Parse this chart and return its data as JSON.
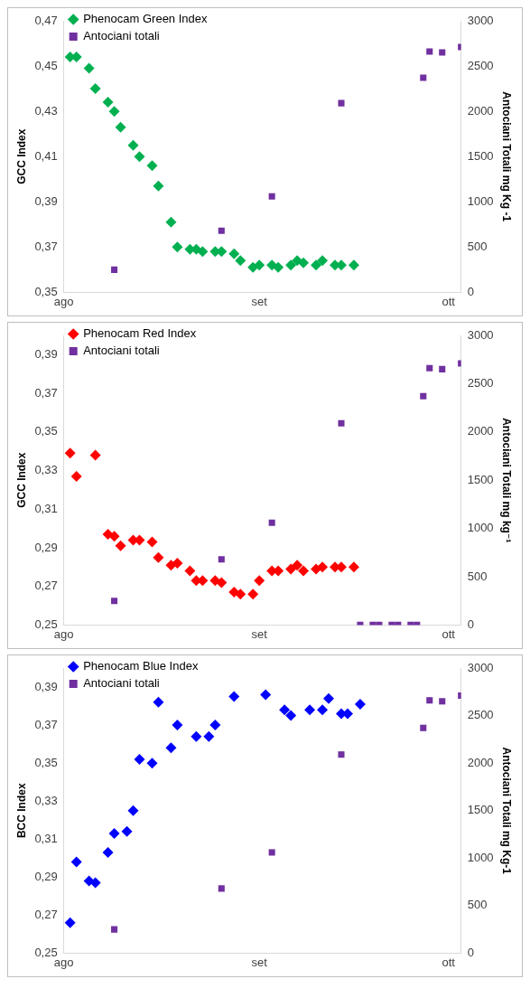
{
  "chart_data": [
    {
      "type": "scatter",
      "ylabel": "GCC Index",
      "y2label": "Antociani Totali mg Kg -1",
      "legend": "top left",
      "grid": false,
      "categories": [
        "ago",
        null,
        null,
        null,
        null,
        null,
        null,
        null,
        null,
        null,
        null,
        null,
        null,
        null,
        null,
        null,
        null,
        null,
        null,
        null,
        null,
        null,
        null,
        null,
        null,
        null,
        null,
        null,
        null,
        null,
        null,
        "set",
        null,
        null,
        null,
        null,
        null,
        null,
        null,
        null,
        null,
        null,
        null,
        null,
        null,
        null,
        null,
        null,
        null,
        null,
        null,
        null,
        null,
        null,
        null,
        null,
        null,
        null,
        null,
        null,
        null,
        "ott",
        null,
        null
      ],
      "ylim": [
        0.35,
        0.47
      ],
      "yticks": [
        {
          "value": 0.35,
          "label": "0,35"
        },
        {
          "value": 0.37,
          "label": "0,37"
        },
        {
          "value": 0.39,
          "label": "0,39"
        },
        {
          "value": 0.41,
          "label": "0,41"
        },
        {
          "value": 0.43,
          "label": "0,43"
        },
        {
          "value": 0.45,
          "label": "0,45"
        },
        {
          "value": 0.47,
          "label": "0,47"
        }
      ],
      "y2lim": [
        0,
        3000
      ],
      "y2ticks": [
        0,
        500,
        1000,
        1500,
        2000,
        2500,
        3000
      ],
      "series": [
        {
          "name": "Phenocam Green Index",
          "color": "#00b050",
          "marker": "diamond",
          "values": [
            null,
            0.454,
            0.454,
            null,
            0.449,
            0.44,
            null,
            0.434,
            0.43,
            0.423,
            null,
            0.415,
            0.41,
            null,
            0.406,
            0.397,
            null,
            0.381,
            0.37,
            null,
            0.369,
            0.369,
            0.368,
            null,
            0.368,
            0.368,
            null,
            0.367,
            0.364,
            null,
            0.361,
            0.362,
            null,
            0.362,
            0.361,
            null,
            0.362,
            0.364,
            0.363,
            null,
            0.362,
            0.364,
            null,
            0.362,
            0.362,
            null,
            0.362,
            null,
            null,
            null,
            null,
            null,
            null,
            null,
            null,
            null,
            null,
            null,
            null,
            null,
            null,
            null,
            null,
            null
          ]
        },
        {
          "name": "Antociani totali",
          "color": "#7030a0",
          "marker": "square",
          "axis": "y2",
          "values": [
            null,
            null,
            null,
            null,
            null,
            null,
            null,
            null,
            250,
            null,
            null,
            null,
            null,
            null,
            null,
            null,
            null,
            null,
            null,
            null,
            null,
            null,
            null,
            null,
            null,
            680,
            null,
            null,
            null,
            null,
            null,
            null,
            null,
            1060,
            null,
            null,
            null,
            null,
            null,
            null,
            null,
            null,
            null,
            null,
            2090,
            null,
            null,
            null,
            null,
            null,
            null,
            null,
            null,
            null,
            null,
            null,
            null,
            2370,
            2660,
            null,
            2650,
            null,
            null,
            2710
          ]
        }
      ]
    },
    {
      "type": "scatter",
      "ylabel": "GCC Index",
      "y2label": "Antociani Totali mg kg⁻¹",
      "legend": "top left",
      "grid": false,
      "categories": [
        "ago",
        null,
        null,
        null,
        null,
        null,
        null,
        null,
        null,
        null,
        null,
        null,
        null,
        null,
        null,
        null,
        null,
        null,
        null,
        null,
        null,
        null,
        null,
        null,
        null,
        null,
        null,
        null,
        null,
        null,
        null,
        "set",
        null,
        null,
        null,
        null,
        null,
        null,
        null,
        null,
        null,
        null,
        null,
        null,
        null,
        null,
        null,
        null,
        null,
        null,
        null,
        null,
        null,
        null,
        null,
        null,
        null,
        null,
        null,
        null,
        null,
        "ott",
        null,
        null
      ],
      "ylim": [
        0.25,
        0.4
      ],
      "yticks": [
        {
          "value": 0.25,
          "label": "0,25"
        },
        {
          "value": 0.27,
          "label": "0,27"
        },
        {
          "value": 0.29,
          "label": "0,29"
        },
        {
          "value": 0.31,
          "label": "0,31"
        },
        {
          "value": 0.33,
          "label": "0,33"
        },
        {
          "value": 0.35,
          "label": "0,35"
        },
        {
          "value": 0.37,
          "label": "0,37"
        },
        {
          "value": 0.39,
          "label": "0,39"
        }
      ],
      "y2lim": [
        0,
        3000
      ],
      "y2ticks": [
        0,
        500,
        1000,
        1500,
        2000,
        2500,
        3000
      ],
      "series": [
        {
          "name": "Phenocam Red Index",
          "color": "#ff0000",
          "marker": "diamond",
          "values": [
            null,
            0.339,
            0.327,
            null,
            null,
            0.338,
            null,
            0.297,
            0.296,
            0.291,
            null,
            0.294,
            0.294,
            null,
            0.293,
            0.285,
            null,
            0.281,
            0.282,
            null,
            0.278,
            0.273,
            0.273,
            null,
            0.273,
            0.272,
            null,
            0.267,
            0.266,
            null,
            0.266,
            0.273,
            null,
            0.278,
            0.278,
            null,
            0.279,
            0.281,
            0.278,
            null,
            0.279,
            0.28,
            null,
            0.28,
            0.28,
            null,
            0.28,
            null,
            null,
            null,
            null,
            null,
            null,
            null,
            null,
            null,
            null,
            null,
            null,
            null,
            null,
            null,
            null,
            null
          ]
        },
        {
          "name": "Antociani totali",
          "color": "#7030a0",
          "marker": "square",
          "axis": "y2",
          "values": [
            null,
            null,
            null,
            null,
            null,
            null,
            null,
            null,
            250,
            null,
            null,
            null,
            null,
            null,
            null,
            null,
            null,
            null,
            null,
            null,
            null,
            null,
            null,
            null,
            null,
            680,
            null,
            null,
            null,
            null,
            null,
            null,
            null,
            1060,
            null,
            null,
            null,
            null,
            null,
            null,
            null,
            null,
            null,
            null,
            2090,
            null,
            null,
            0,
            null,
            0,
            0,
            null,
            0,
            0,
            null,
            0,
            0,
            2370,
            2660,
            null,
            2650,
            null,
            null,
            2710
          ]
        }
      ]
    },
    {
      "type": "scatter",
      "ylabel": "BCC Index",
      "y2label": "Antociani Totali mg Kg-1",
      "legend": "top left",
      "grid": false,
      "categories": [
        "ago",
        null,
        null,
        null,
        null,
        null,
        null,
        null,
        null,
        null,
        null,
        null,
        null,
        null,
        null,
        null,
        null,
        null,
        null,
        null,
        null,
        null,
        null,
        null,
        null,
        null,
        null,
        null,
        null,
        null,
        null,
        "set",
        null,
        null,
        null,
        null,
        null,
        null,
        null,
        null,
        null,
        null,
        null,
        null,
        null,
        null,
        null,
        null,
        null,
        null,
        null,
        null,
        null,
        null,
        null,
        null,
        null,
        null,
        null,
        null,
        null,
        "ott",
        null,
        null
      ],
      "ylim": [
        0.25,
        0.4
      ],
      "yticks": [
        {
          "value": 0.25,
          "label": "0,25"
        },
        {
          "value": 0.27,
          "label": "0,27"
        },
        {
          "value": 0.29,
          "label": "0,29"
        },
        {
          "value": 0.31,
          "label": "0,31"
        },
        {
          "value": 0.33,
          "label": "0,33"
        },
        {
          "value": 0.35,
          "label": "0,35"
        },
        {
          "value": 0.37,
          "label": "0,37"
        },
        {
          "value": 0.39,
          "label": "0,39"
        }
      ],
      "y2lim": [
        0,
        3000
      ],
      "y2ticks": [
        0,
        500,
        1000,
        1500,
        2000,
        2500,
        3000
      ],
      "series": [
        {
          "name": "Phenocam Blue Index",
          "color": "#0000ff",
          "marker": "diamond",
          "values": [
            null,
            0.266,
            0.298,
            null,
            0.288,
            0.287,
            null,
            0.303,
            0.313,
            null,
            0.314,
            0.325,
            0.352,
            null,
            0.35,
            0.382,
            null,
            0.358,
            0.37,
            null,
            null,
            0.364,
            null,
            0.364,
            0.37,
            null,
            null,
            0.385,
            null,
            null,
            null,
            null,
            0.386,
            null,
            null,
            0.378,
            0.375,
            null,
            null,
            0.378,
            null,
            0.378,
            0.384,
            null,
            0.376,
            0.376,
            null,
            0.381,
            null,
            null,
            null,
            null,
            null,
            null,
            null,
            null,
            null,
            null,
            null,
            null,
            null,
            null,
            null,
            null
          ]
        },
        {
          "name": "Antociani totali",
          "color": "#7030a0",
          "marker": "square",
          "axis": "y2",
          "values": [
            null,
            null,
            null,
            null,
            null,
            null,
            null,
            null,
            250,
            null,
            null,
            null,
            null,
            null,
            null,
            null,
            null,
            null,
            null,
            null,
            null,
            null,
            null,
            null,
            null,
            680,
            null,
            null,
            null,
            null,
            null,
            null,
            null,
            1060,
            null,
            null,
            null,
            null,
            null,
            null,
            null,
            null,
            null,
            null,
            2090,
            null,
            null,
            null,
            null,
            null,
            null,
            null,
            null,
            null,
            null,
            null,
            null,
            2370,
            2660,
            null,
            2650,
            null,
            null,
            2710
          ]
        }
      ]
    }
  ]
}
